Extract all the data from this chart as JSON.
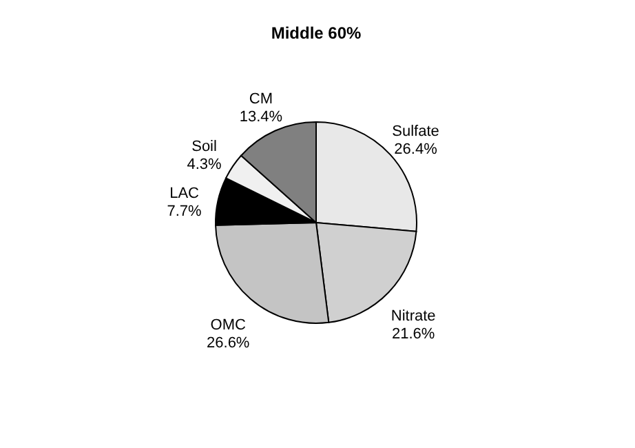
{
  "chart_data": {
    "type": "pie",
    "title": "Middle 60%",
    "categories": [
      "Sulfate",
      "Nitrate",
      "OMC",
      "LAC",
      "Soil",
      "CM"
    ],
    "values": [
      26.4,
      21.6,
      26.6,
      7.7,
      4.3,
      13.4
    ],
    "value_labels": [
      "26.4%",
      "21.6%",
      "26.6%",
      "7.7%",
      "4.3%",
      "13.4%"
    ],
    "colors": [
      "#e8e8e8",
      "#d0d0d0",
      "#c4c4c4",
      "#000000",
      "#f0f0f0",
      "#808080"
    ],
    "legend": false
  }
}
